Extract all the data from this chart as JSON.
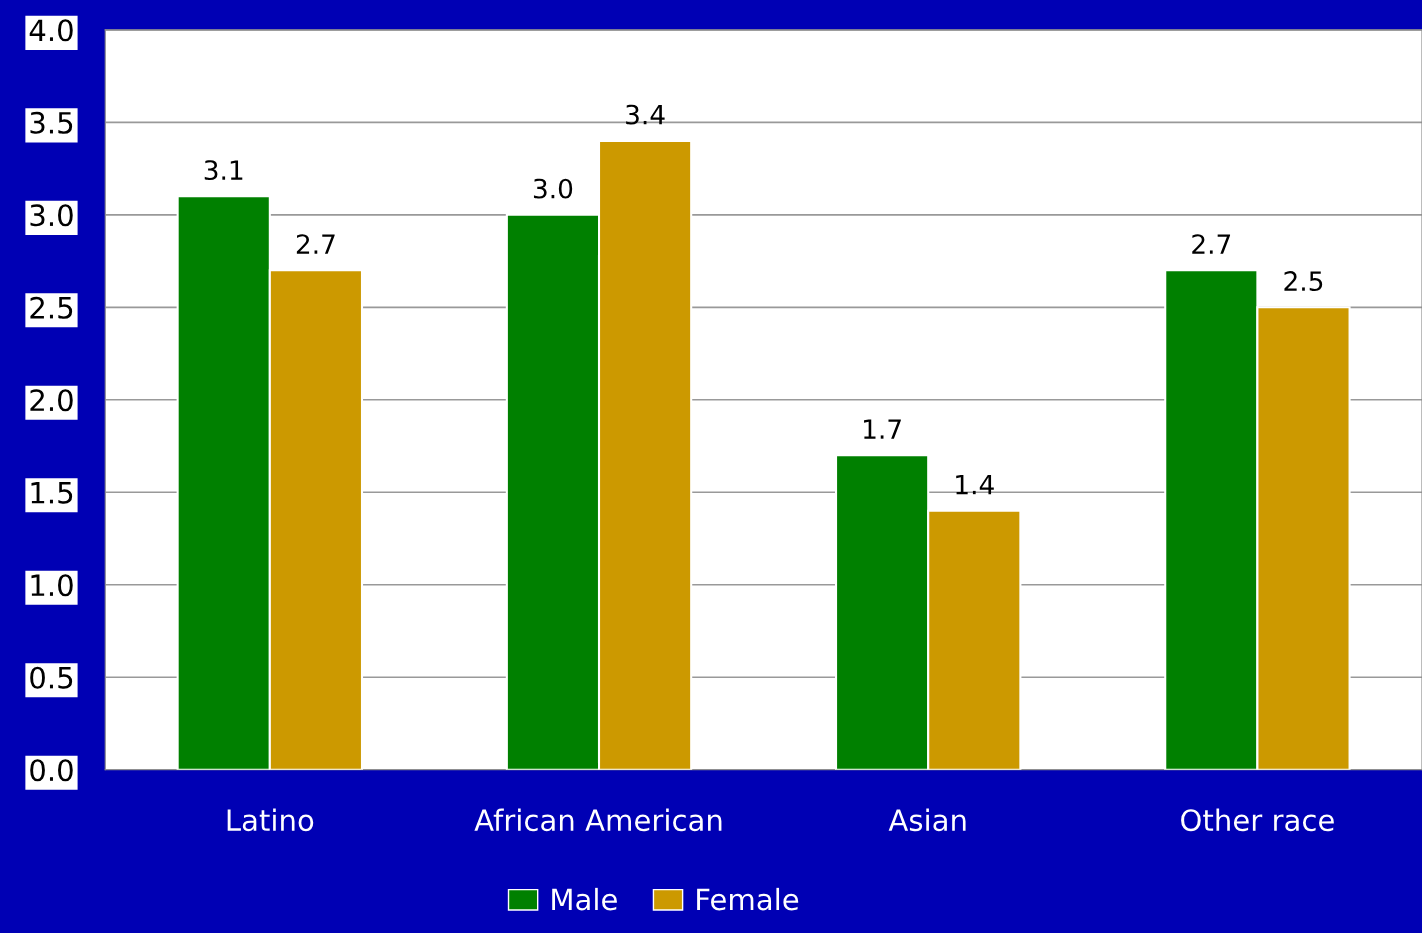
{
  "chart_data": {
    "type": "bar",
    "categories": [
      "Latino",
      "African American",
      "Asian",
      "Other race"
    ],
    "series": [
      {
        "name": "Male",
        "color": "#008000",
        "values": [
          3.1,
          3.0,
          1.7,
          2.7
        ],
        "value_labels": [
          "3.1",
          "3.0",
          "1.7",
          "2.7"
        ]
      },
      {
        "name": "Female",
        "color": "#cc9900",
        "values": [
          2.7,
          3.4,
          1.4,
          2.5
        ],
        "value_labels": [
          "2.7",
          "3.4",
          "1.4",
          "2.5"
        ]
      }
    ],
    "ylim": [
      0,
      4
    ],
    "yticks": [
      {
        "value": 0,
        "label": "0.0"
      },
      {
        "value": 0.5,
        "label": "0.5"
      },
      {
        "value": 1,
        "label": "1.0"
      },
      {
        "value": 1.5,
        "label": "1.5"
      },
      {
        "value": 2,
        "label": "2.0"
      },
      {
        "value": 2.5,
        "label": "2.5"
      },
      {
        "value": 3,
        "label": "3.0"
      },
      {
        "value": 3.5,
        "label": "3.5"
      },
      {
        "value": 4,
        "label": "4.0"
      }
    ],
    "grid": "y",
    "legend": "bottom"
  }
}
